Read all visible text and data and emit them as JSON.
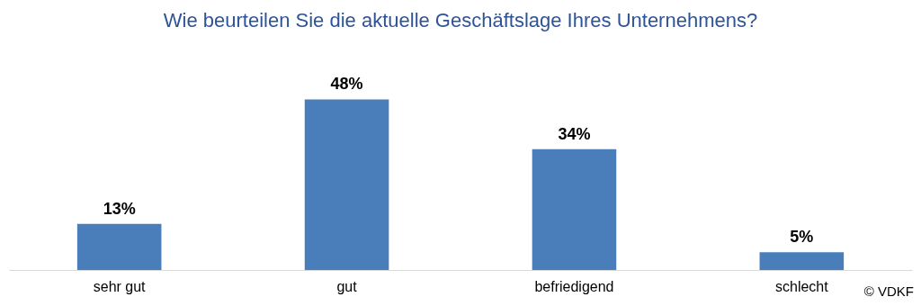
{
  "chart_data": {
    "type": "bar",
    "title": "Wie beurteilen Sie die aktuelle Geschäftslage Ihres Unternehmens?",
    "categories": [
      "sehr gut",
      "gut",
      "befriedigend",
      "schlecht"
    ],
    "values": [
      13,
      48,
      34,
      5
    ],
    "value_labels": [
      "13%",
      "48%",
      "34%",
      "5%"
    ],
    "color": "#4a7ebb",
    "annotations": [
      "© VDKF"
    ]
  }
}
